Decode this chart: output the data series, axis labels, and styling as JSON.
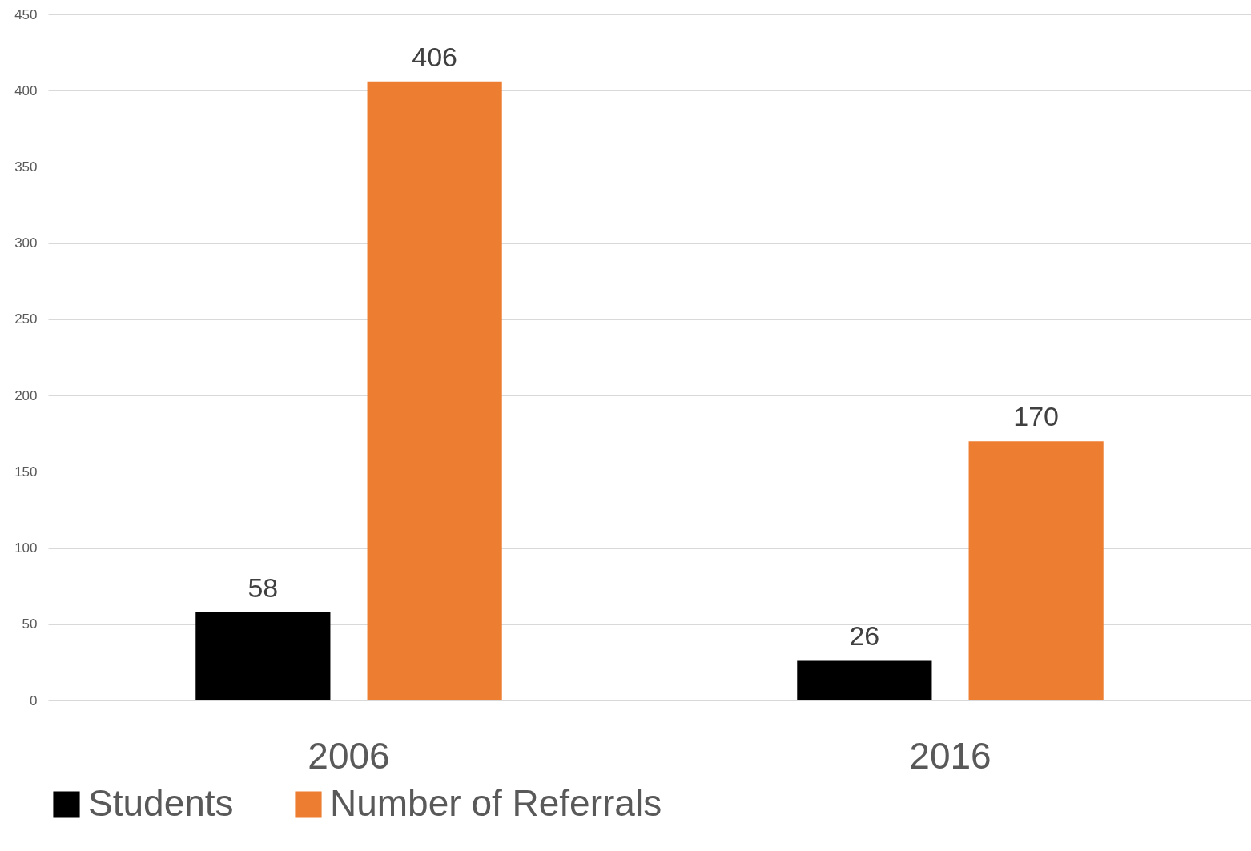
{
  "chart_data": {
    "type": "bar",
    "categories": [
      "2006",
      "2016"
    ],
    "series": [
      {
        "name": "Students",
        "color": "#000000",
        "values": [
          58,
          26
        ]
      },
      {
        "name": "Number of Referrals",
        "color": "#ed7d31",
        "values": [
          406,
          170
        ]
      }
    ],
    "ylim": [
      0,
      450
    ],
    "yticks": [
      0,
      50,
      100,
      150,
      200,
      250,
      300,
      350,
      400,
      450
    ],
    "grid": "y",
    "legend": "bottom",
    "data_labels": true
  }
}
